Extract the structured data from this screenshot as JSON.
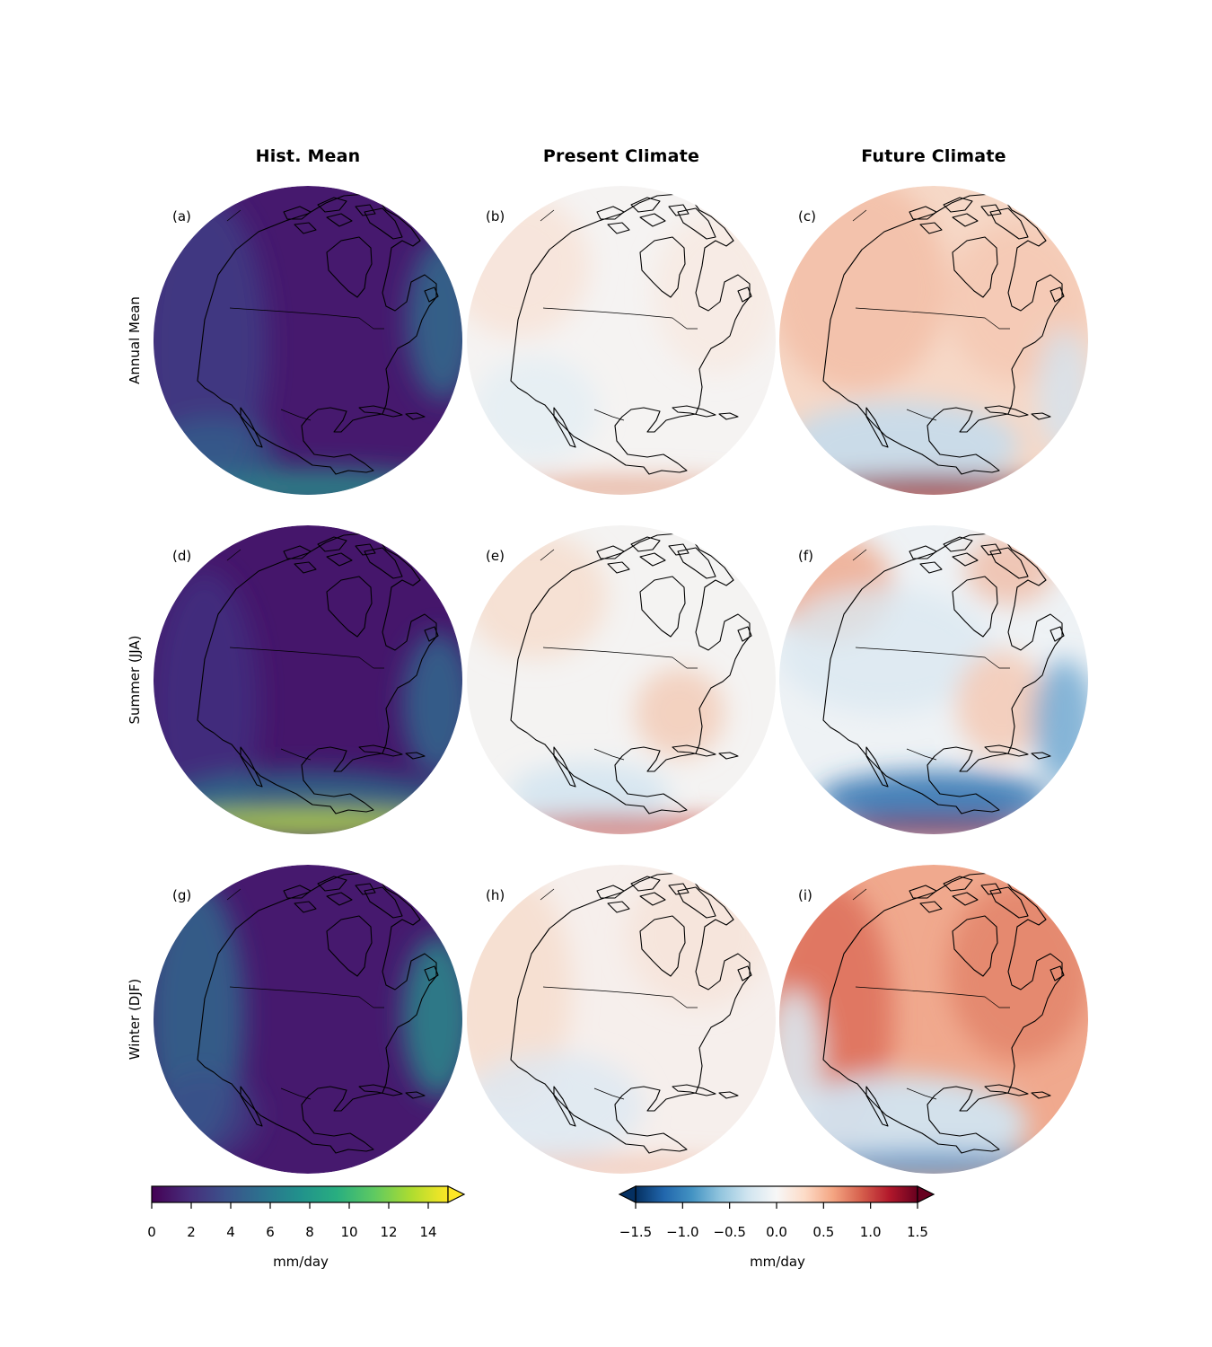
{
  "columns": [
    "Hist. Mean",
    "Present Climate",
    "Future Climate"
  ],
  "rows": [
    "Annual Mean",
    "Summer (JJA)",
    "Winter (DJF)"
  ],
  "panels": [
    {
      "label": "(a)",
      "column": "Hist. Mean",
      "row": "Annual Mean",
      "colormap": "viridis"
    },
    {
      "label": "(b)",
      "column": "Present Climate",
      "row": "Annual Mean",
      "colormap": "RdBu_r"
    },
    {
      "label": "(c)",
      "column": "Future Climate",
      "row": "Annual Mean",
      "colormap": "RdBu_r"
    },
    {
      "label": "(d)",
      "column": "Hist. Mean",
      "row": "Summer (JJA)",
      "colormap": "viridis"
    },
    {
      "label": "(e)",
      "column": "Present Climate",
      "row": "Summer (JJA)",
      "colormap": "RdBu_r"
    },
    {
      "label": "(f)",
      "column": "Future Climate",
      "row": "Summer (JJA)",
      "colormap": "RdBu_r"
    },
    {
      "label": "(g)",
      "column": "Hist. Mean",
      "row": "Winter (DJF)",
      "colormap": "viridis"
    },
    {
      "label": "(h)",
      "column": "Present Climate",
      "row": "Winter (DJF)",
      "colormap": "RdBu_r"
    },
    {
      "label": "(i)",
      "column": "Future Climate",
      "row": "Winter (DJF)",
      "colormap": "RdBu_r"
    }
  ],
  "colorbars": {
    "hist": {
      "unit": "mm/day",
      "range": [
        0,
        15
      ],
      "extend": "max",
      "ticks": [
        "0",
        "2",
        "4",
        "6",
        "8",
        "10",
        "12",
        "14"
      ],
      "tick_values": [
        0,
        2,
        4,
        6,
        8,
        10,
        12,
        14
      ],
      "colors": [
        "#440154",
        "#472d7b",
        "#3b528b",
        "#2c728e",
        "#21918c",
        "#28ae80",
        "#5ec962",
        "#addc30",
        "#fde725"
      ]
    },
    "diff": {
      "unit": "mm/day",
      "range": [
        -1.5,
        1.5
      ],
      "extend": "both",
      "ticks": [
        "−1.5",
        "−1.0",
        "−0.5",
        "0.0",
        "0.5",
        "1.0",
        "1.5"
      ],
      "tick_values": [
        -1.5,
        -1.0,
        -0.5,
        0.0,
        0.5,
        1.0,
        1.5
      ],
      "colors": [
        "#053061",
        "#2166ac",
        "#4393c3",
        "#92c5de",
        "#d1e5f0",
        "#f7f7f7",
        "#fddbc7",
        "#f4a582",
        "#d6604d",
        "#b2182b",
        "#67001f"
      ]
    }
  }
}
